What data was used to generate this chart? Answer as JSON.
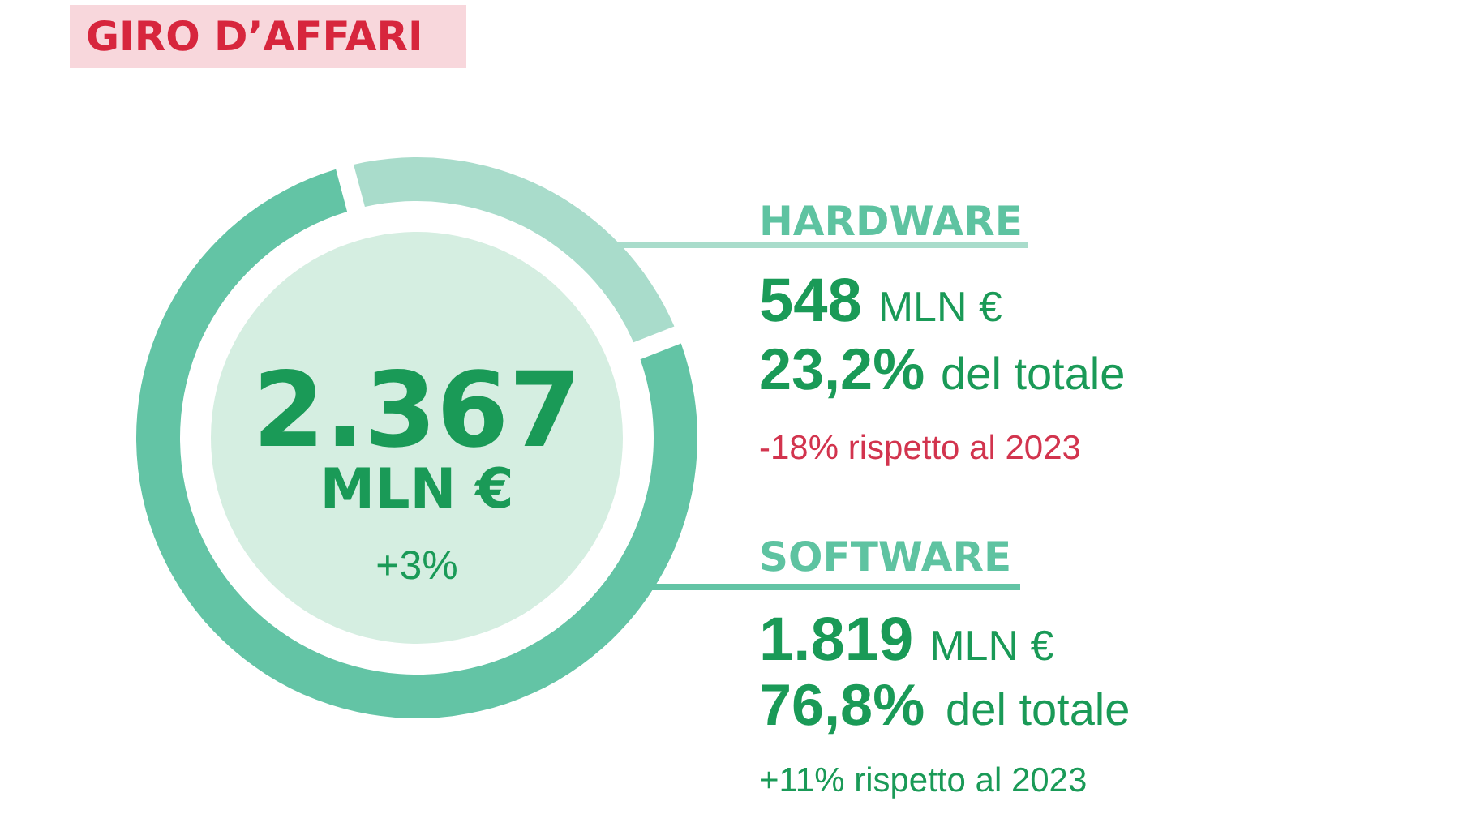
{
  "chart_data": {
    "type": "donut",
    "title": "GIRO D’AFFARI",
    "categories": [
      "HARDWARE",
      "SOFTWARE"
    ],
    "values": [
      548,
      1819
    ],
    "colors": [
      "#a9dccb",
      "#63c4a5"
    ],
    "value_labels": [
      "548 MLN €",
      "1.819 MLN €"
    ],
    "annotations": [
      "2.367",
      "MLN €",
      "+3%",
      "23,2% del totale",
      "-18% rispetto al 2023",
      "76,8% del totale",
      "+11% rispetto al 2023"
    ]
  }
}
